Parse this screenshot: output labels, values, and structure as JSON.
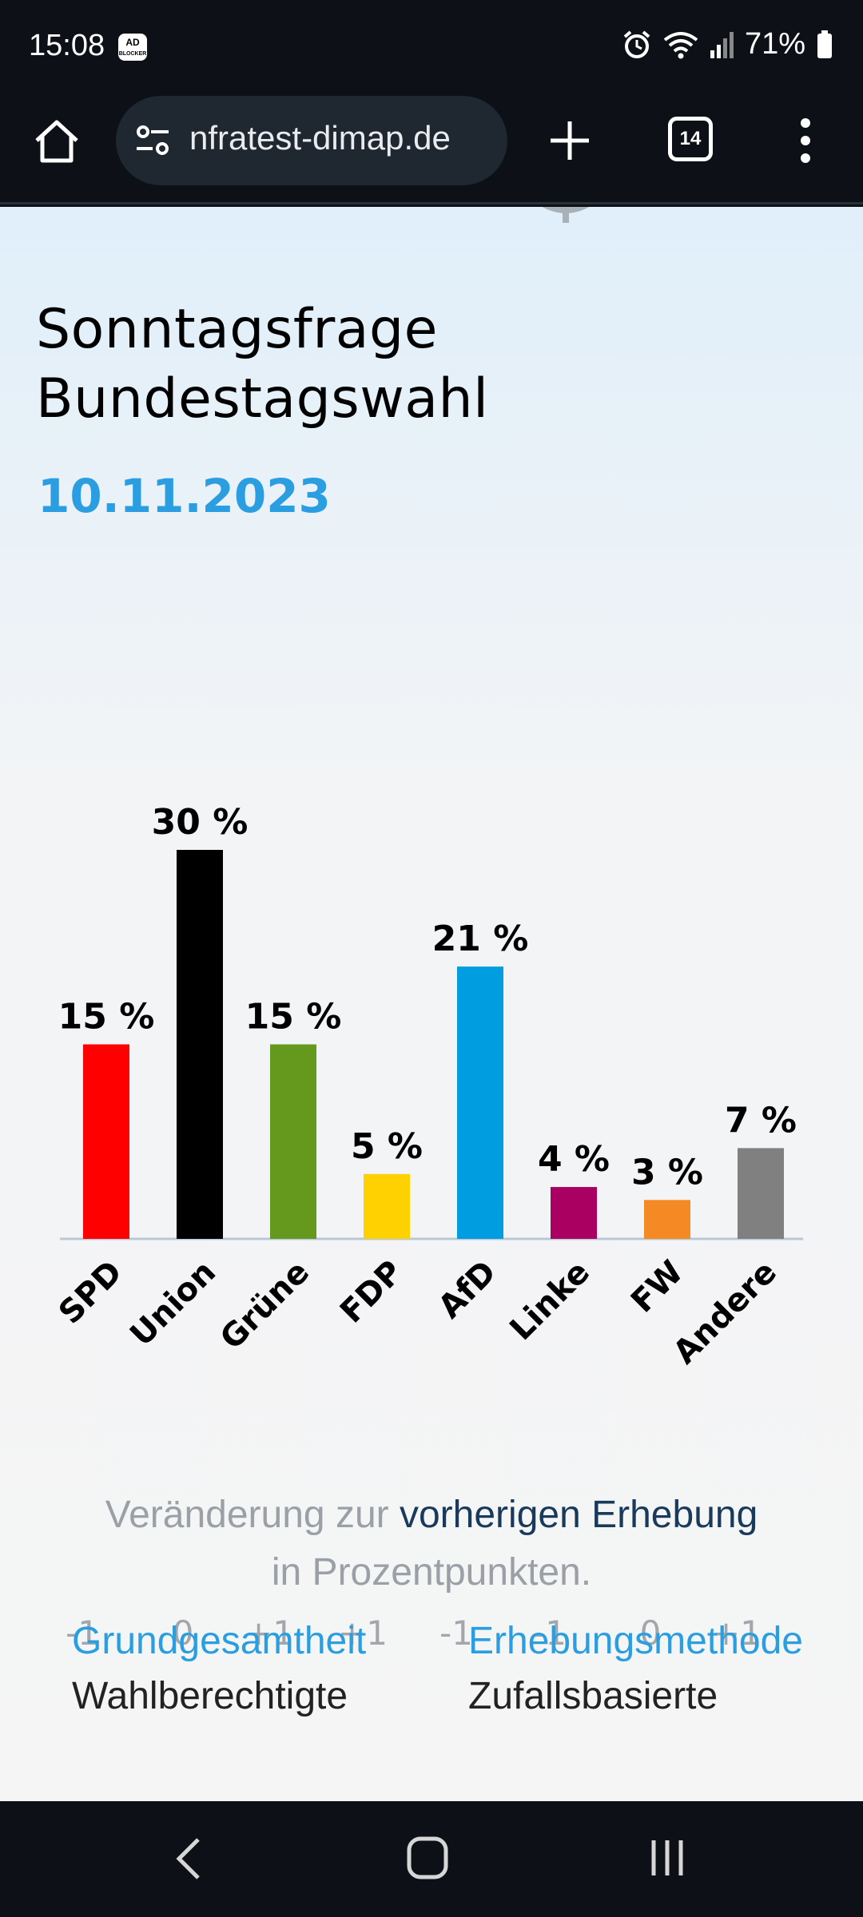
{
  "status_bar": {
    "time": "15:08",
    "adblock_badge": "AD BLOCKER",
    "battery": "71%",
    "icons": [
      "alarm-icon",
      "wifi-icon",
      "signal-icon",
      "battery-icon"
    ]
  },
  "browser": {
    "url": "nfratest-dimap.de",
    "tab_count": "14",
    "icons": [
      "home-icon",
      "site-settings-icon",
      "new-tab-icon",
      "tabs-icon",
      "more-menu-icon"
    ]
  },
  "page": {
    "title_line1": "Sonntagsfrage",
    "title_line2": "Bundestagswahl",
    "date": "10.11.2023"
  },
  "chart_data": {
    "type": "bar",
    "categories": [
      "SPD",
      "Union",
      "Grüne",
      "FDP",
      "AfD",
      "Linke",
      "FW",
      "Andere"
    ],
    "values": [
      15,
      30,
      15,
      5,
      21,
      4,
      3,
      7
    ],
    "value_labels": [
      "15 %",
      "30 %",
      "15 %",
      "5 %",
      "21 %",
      "4 %",
      "3 %",
      "7 %"
    ],
    "changes": [
      "-1",
      "0",
      "+1",
      "+1",
      "-1",
      "-1",
      "0",
      "+1"
    ],
    "colors": [
      "#ff0000",
      "#000000",
      "#64991e",
      "#ffd100",
      "#009ee0",
      "#aa0061",
      "#f58a25",
      "#808080"
    ],
    "ylim": [
      0,
      30
    ],
    "grid": false
  },
  "footnote": {
    "prefix": "Veränderung zur ",
    "link": "vorherigen Erhebung",
    "line2": "in Prozentpunkten."
  },
  "info": {
    "col1_head": "Grundgesamtheit",
    "col1_sub": "Wahlberechtigte",
    "col2_head": "Erhebungsmethode",
    "col2_sub": "Zufallsbasierte"
  },
  "colors": {
    "accent": "#2a9ee0",
    "link_dark": "#1a3a5c",
    "muted": "#9aa0a6"
  },
  "nav_bar": {
    "icons": [
      "back-icon",
      "home-button-icon",
      "recents-icon"
    ]
  }
}
